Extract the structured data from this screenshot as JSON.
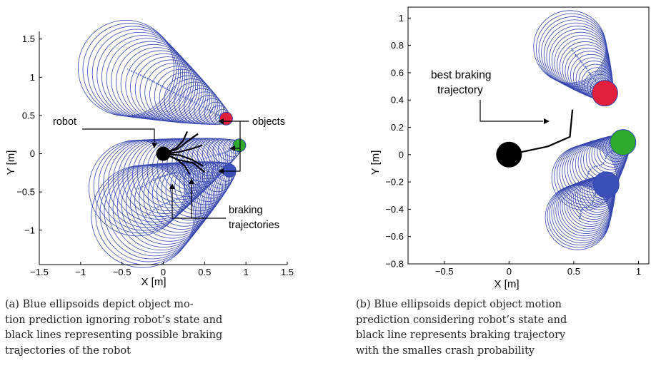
{
  "chart_data": [
    {
      "id": "a",
      "type": "scatter",
      "xlabel": "X [m]",
      "ylabel": "Y [m]",
      "xlim": [
        -1.5,
        1.5
      ],
      "ylim": [
        -1.45,
        1.6
      ],
      "x_ticks": [
        -1.5,
        -1,
        -0.5,
        0,
        0.5,
        1,
        1.5
      ],
      "x_tick_labels": [
        "−1.5",
        "−1",
        "−0.5",
        "0",
        "0.5",
        "1",
        "1.5"
      ],
      "y_ticks": [
        -1,
        -0.5,
        0,
        0.5,
        1,
        1.5
      ],
      "y_tick_labels": [
        "−1",
        "−0.5",
        "0",
        "0.5",
        "1",
        "1.5"
      ],
      "grid": false,
      "robot": {
        "x": 0.0,
        "y": 0.0,
        "color": "#000000"
      },
      "objects": [
        {
          "x": 0.76,
          "y": 0.46,
          "color": "#e0203c"
        },
        {
          "x": 0.92,
          "y": 0.11,
          "color": "#2faa2f"
        },
        {
          "x": 0.8,
          "y": -0.22,
          "color": "#3a4fb8"
        }
      ],
      "predictions": [
        {
          "from": [
            0.76,
            0.46
          ],
          "to": [
            -0.45,
            1.12
          ],
          "r_start": 0.06,
          "r_end": 0.58,
          "count": 30
        },
        {
          "from": [
            0.92,
            0.11
          ],
          "to": [
            -0.32,
            -0.45
          ],
          "r_start": 0.05,
          "r_end": 0.58,
          "count": 30
        },
        {
          "from": [
            0.8,
            -0.22
          ],
          "to": [
            -0.25,
            -0.82
          ],
          "r_start": 0.08,
          "r_end": 0.62,
          "count": 30
        }
      ],
      "braking_trajectories": [
        [
          [
            0.0,
            0.0
          ],
          [
            0.17,
            0.06
          ],
          [
            0.3,
            0.17
          ],
          [
            0.42,
            0.26
          ]
        ],
        [
          [
            0.0,
            0.0
          ],
          [
            0.15,
            0.07
          ],
          [
            0.24,
            0.17
          ],
          [
            0.29,
            0.29
          ]
        ],
        [
          [
            0.0,
            0.0
          ],
          [
            0.18,
            0.02
          ],
          [
            0.33,
            0.06
          ],
          [
            0.47,
            0.11
          ]
        ],
        [
          [
            0.0,
            0.0
          ],
          [
            0.2,
            -0.02
          ],
          [
            0.35,
            -0.08
          ],
          [
            0.48,
            -0.16
          ]
        ],
        [
          [
            0.0,
            0.0
          ],
          [
            0.15,
            -0.06
          ],
          [
            0.26,
            -0.16
          ],
          [
            0.32,
            -0.27
          ]
        ],
        [
          [
            0.0,
            0.0
          ],
          [
            0.18,
            -0.08
          ],
          [
            0.36,
            -0.12
          ],
          [
            0.5,
            -0.24
          ]
        ]
      ],
      "annotations": {
        "robot_label": "robot",
        "objects_label": "objects",
        "braking_label_line1": "braking",
        "braking_label_line2": "trajectories"
      }
    },
    {
      "id": "b",
      "type": "scatter",
      "xlabel": "X [m]",
      "ylabel": "Y [m]",
      "xlim": [
        -0.78,
        1.08
      ],
      "ylim": [
        -0.8,
        1.08
      ],
      "x_ticks": [
        -0.5,
        0,
        0.5,
        1
      ],
      "x_tick_labels": [
        "−0.5",
        "0",
        "0.5",
        "1"
      ],
      "y_ticks": [
        -0.8,
        -0.6,
        -0.4,
        -0.2,
        0,
        0.2,
        0.4,
        0.6,
        0.8,
        1
      ],
      "y_tick_labels": [
        "−0.8",
        "−0.6",
        "−0.4",
        "−0.2",
        "0",
        "0.2",
        "0.4",
        "0.6",
        "0.8",
        "1"
      ],
      "grid": false,
      "robot": {
        "x": 0.0,
        "y": 0.0,
        "color": "#000000"
      },
      "objects": [
        {
          "x": 0.74,
          "y": 0.45,
          "color": "#e0203c"
        },
        {
          "x": 0.88,
          "y": 0.09,
          "color": "#2faa2f"
        },
        {
          "x": 0.75,
          "y": -0.22,
          "color": "#3a4fb8"
        }
      ],
      "predictions": [
        {
          "from": [
            0.74,
            0.45
          ],
          "to": [
            0.47,
            0.79
          ],
          "r_start": 0.06,
          "r_end": 0.28,
          "count": 24
        },
        {
          "from": [
            0.88,
            0.09
          ],
          "to": [
            0.58,
            -0.17
          ],
          "r_start": 0.06,
          "r_end": 0.25,
          "count": 24
        },
        {
          "from": [
            0.75,
            -0.22
          ],
          "to": [
            0.53,
            -0.46
          ],
          "r_start": 0.07,
          "r_end": 0.25,
          "count": 24
        }
      ],
      "braking_trajectories": [
        [
          [
            0.0,
            0.0
          ],
          [
            0.3,
            0.06
          ],
          [
            0.47,
            0.13
          ],
          [
            0.49,
            0.33
          ]
        ]
      ],
      "annotations": {
        "best_label_line1": "best braking",
        "best_label_line2": "trajectory"
      }
    }
  ],
  "captions": {
    "a_line1": "(a)  Blue  ellipsoids  depict  object  mo-",
    "a_line2": "tion prediction ignoring robot’s state and",
    "a_line3": "black lines representing possible braking",
    "a_line4": "trajectories of the robot",
    "b_line1": "(b) Blue ellipsoids depict object motion",
    "b_line2": "prediction considering robot’s state and",
    "b_line3": "black line represents braking trajectory",
    "b_line4": "with the smalles crash probability"
  },
  "colors": {
    "ellipse": "#3646b0",
    "path": "#5a6cc8",
    "axis": "#000000",
    "robot": "#000000"
  }
}
